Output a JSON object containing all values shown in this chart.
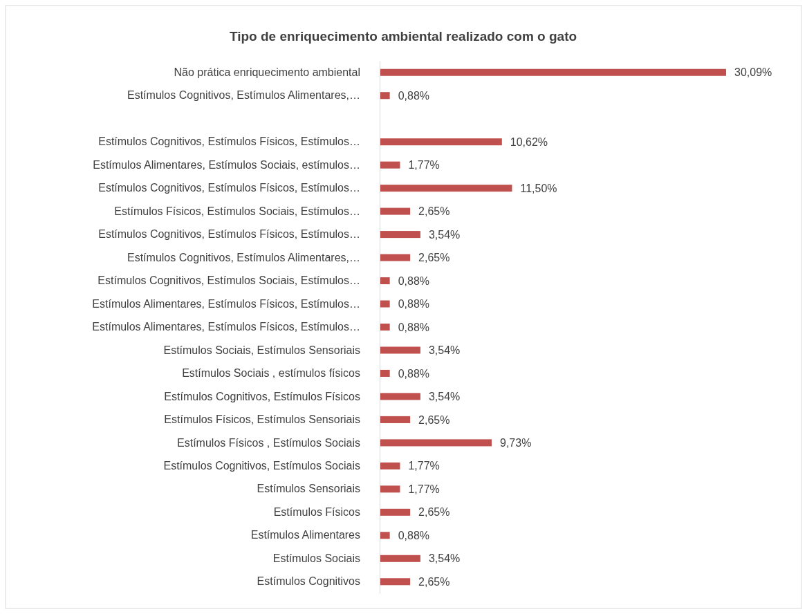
{
  "chart_data": {
    "type": "bar",
    "orientation": "horizontal",
    "title": "Tipo de enriquecimento ambiental realizado com o gato",
    "categories": [
      "Não prática enriquecimento ambiental",
      "Estímulos Cognitivos, Estímulos Alimentares,…",
      null,
      "Estímulos Cognitivos, Estímulos Físicos, Estímulos…",
      "Estímulos Alimentares, Estímulos Sociais, estímulos…",
      "Estímulos Cognitivos, Estímulos Físicos, Estímulos…",
      "Estímulos Físicos, Estímulos Sociais, Estímulos…",
      "Estímulos Cognitivos, Estímulos Físicos, Estímulos…",
      "Estímulos Cognitivos, Estímulos Alimentares,…",
      "Estímulos Cognitivos,  Estímulos Sociais, Estímulos…",
      "Estímulos Alimentares, Estímulos Físicos, Estímulos…",
      "Estímulos Alimentares, Estímulos Físicos, Estímulos…",
      "Estímulos Sociais, Estímulos Sensoriais",
      "Estímulos Sociais , estímulos físicos",
      "Estímulos Cognitivos, Estímulos Físicos",
      "Estímulos Físicos, Estímulos Sensoriais",
      "Estímulos Físicos , Estímulos Sociais",
      "Estímulos Cognitivos, Estímulos Sociais",
      "Estímulos Sensoriais",
      "Estímulos Físicos",
      "Estímulos Alimentares",
      "Estímulos Sociais",
      "Estímulos Cognitivos"
    ],
    "values": [
      30.09,
      0.88,
      null,
      10.62,
      1.77,
      11.5,
      2.65,
      3.54,
      2.65,
      0.88,
      0.88,
      0.88,
      3.54,
      0.88,
      3.54,
      2.65,
      9.73,
      1.77,
      1.77,
      2.65,
      0.88,
      3.54,
      2.65
    ],
    "value_labels": [
      "30,09%",
      "0,88%",
      null,
      "10,62%",
      "1,77%",
      "11,50%",
      "2,65%",
      "3,54%",
      "2,65%",
      "0,88%",
      "0,88%",
      "0,88%",
      "3,54%",
      "0,88%",
      "3,54%",
      "2,65%",
      "9,73%",
      "1,77%",
      "1,77%",
      "2,65%",
      "0,88%",
      "3,54%",
      "2,65%"
    ],
    "color": "#c0504d"
  }
}
